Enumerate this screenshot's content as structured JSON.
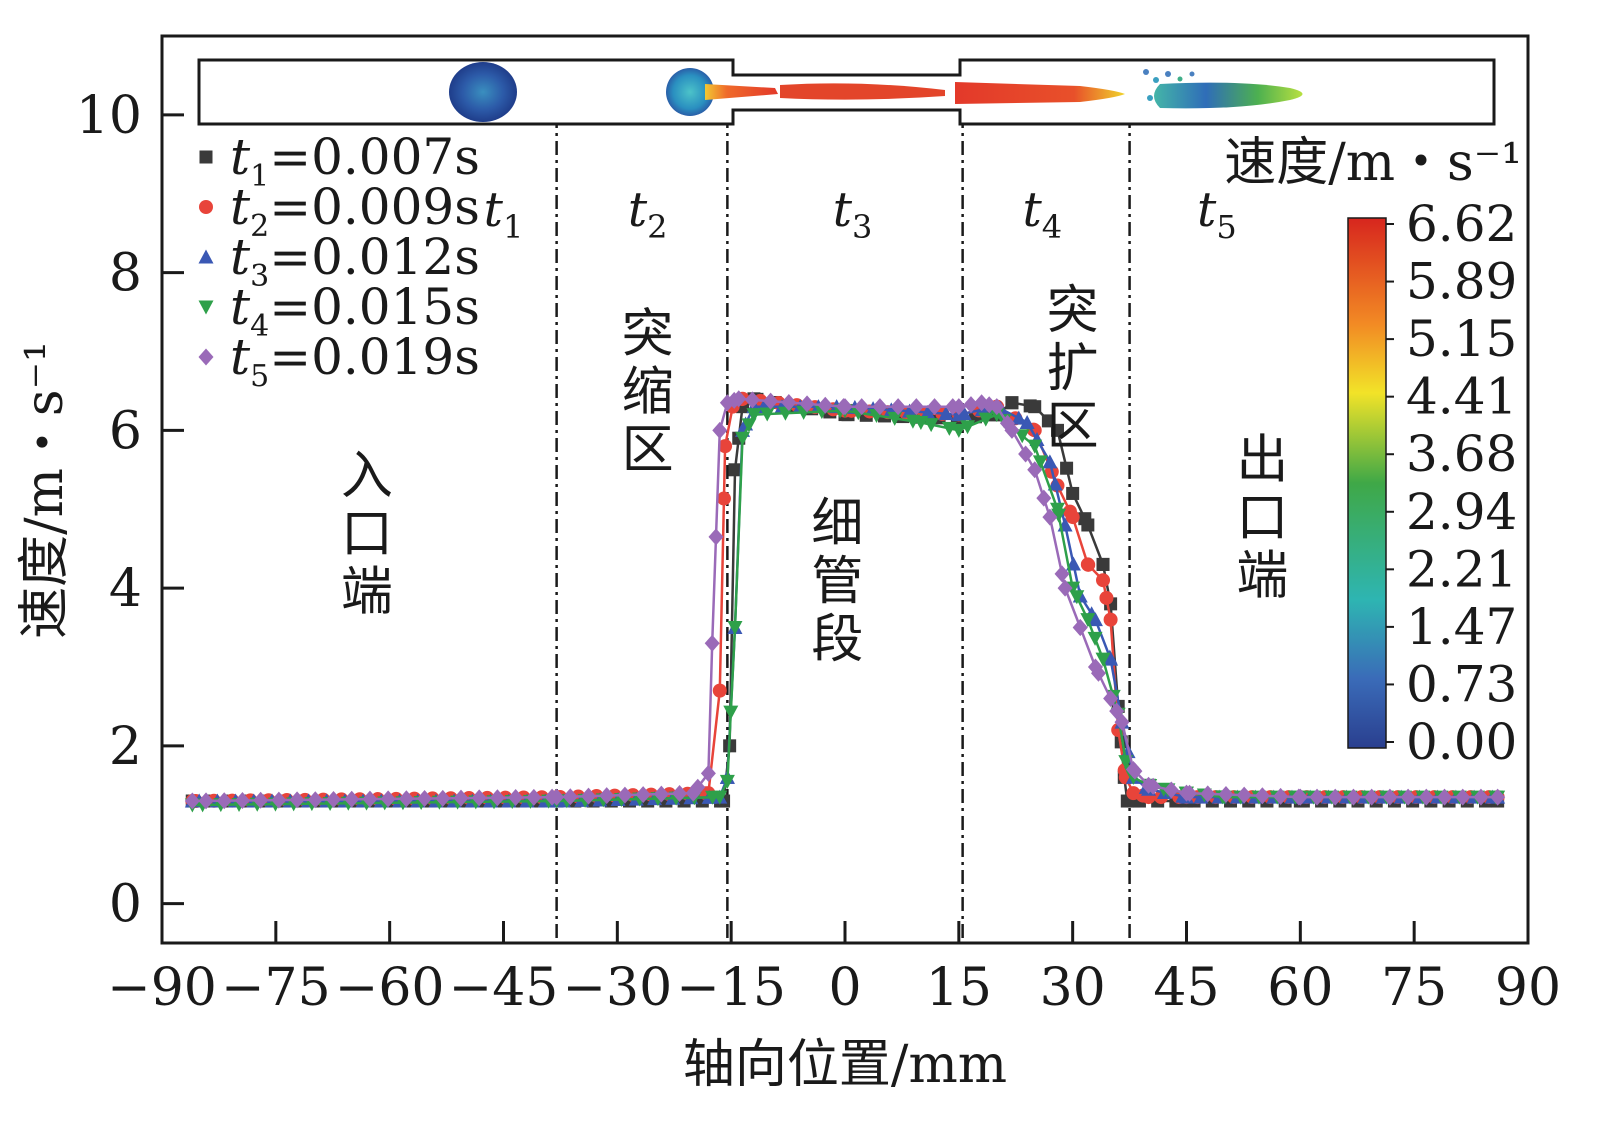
{
  "chart_data": {
    "type": "line",
    "xlabel": "轴向位置/mm",
    "ylabel": "速度/m・s⁻¹",
    "xlim": [
      -90,
      90
    ],
    "ylim": [
      -0.5,
      11
    ],
    "xticks": [
      -90,
      -75,
      -60,
      -45,
      -30,
      -15,
      0,
      15,
      30,
      45,
      60,
      75,
      90
    ],
    "xtick_labels": [
      "−90",
      "−75",
      "−60",
      "−45",
      "−30",
      "−15",
      "0",
      "15",
      "30",
      "45",
      "60",
      "75",
      "90"
    ],
    "yticks": [
      0,
      2,
      4,
      6,
      8,
      10
    ],
    "ytick_labels": [
      "0",
      "2",
      "4",
      "6",
      "8",
      "10"
    ],
    "boundaries_mm": [
      -38,
      -15.5,
      15.5,
      37.5
    ],
    "series": [
      {
        "name": "t1=0.007s",
        "t_sym": "t",
        "t_sub": "1",
        "t_val": "=0.007s",
        "marker": "square",
        "color": "#3a3a3a",
        "x": [
          -86,
          -38,
          -16,
          -15.2,
          -14.5,
          -13.5,
          -12,
          0,
          15,
          20,
          22,
          25,
          28,
          30,
          32,
          34,
          35,
          36,
          36.8,
          37.2,
          38,
          45,
          60,
          86
        ],
        "y": [
          1.3,
          1.3,
          1.3,
          2.0,
          5.5,
          6.3,
          6.4,
          6.2,
          6.15,
          6.2,
          6.35,
          6.3,
          6.0,
          5.2,
          4.8,
          4.3,
          3.8,
          2.5,
          1.6,
          1.3,
          1.3,
          1.3,
          1.3,
          1.3
        ]
      },
      {
        "name": "t2=0.009s",
        "t_sym": "t",
        "t_sub": "2",
        "t_val": "=0.009s",
        "marker": "circle",
        "color": "#e8443a",
        "x": [
          -86,
          -38,
          -18,
          -16.5,
          -15.8,
          -14.8,
          -13.5,
          0,
          15,
          20,
          25,
          28,
          30,
          32,
          34,
          35,
          36,
          37,
          38,
          40,
          45,
          60,
          86
        ],
        "y": [
          1.3,
          1.35,
          1.4,
          2.7,
          5.8,
          6.3,
          6.4,
          6.25,
          6.2,
          6.3,
          6.0,
          5.3,
          4.9,
          4.3,
          4.1,
          3.6,
          2.2,
          1.6,
          1.4,
          1.35,
          1.35,
          1.35,
          1.35
        ]
      },
      {
        "name": "t3=0.012s",
        "t_sym": "t",
        "t_sub": "3",
        "t_val": "=0.012s",
        "marker": "triangle-up",
        "color": "#3a58b4",
        "x": [
          -86,
          -38,
          -16.5,
          -15.5,
          -14.5,
          -13.5,
          -12,
          0,
          15,
          20,
          24,
          27,
          29,
          31,
          33,
          35,
          36.5,
          38,
          40,
          45,
          60,
          86
        ],
        "y": [
          1.3,
          1.3,
          1.35,
          1.6,
          3.5,
          6.0,
          6.3,
          6.3,
          6.2,
          6.3,
          6.1,
          5.6,
          4.8,
          3.9,
          3.6,
          3.1,
          2.3,
          1.6,
          1.45,
          1.35,
          1.35,
          1.35
        ]
      },
      {
        "name": "t4=0.015s",
        "t_sym": "t",
        "t_sub": "4",
        "t_val": "=0.015s",
        "marker": "triangle-down",
        "color": "#2ea04a",
        "x": [
          -86,
          -38,
          -16.5,
          -15.5,
          -14.5,
          -13.5,
          -12,
          0,
          10,
          15,
          20,
          25,
          28,
          30,
          32,
          34,
          36,
          37,
          38,
          40,
          42,
          45,
          50,
          60,
          86
        ],
        "y": [
          1.25,
          1.3,
          1.35,
          1.55,
          3.5,
          5.9,
          6.2,
          6.25,
          6.1,
          6.0,
          6.2,
          5.8,
          5.0,
          4.0,
          3.6,
          3.1,
          2.4,
          1.8,
          1.6,
          1.5,
          1.45,
          1.4,
          1.35,
          1.35,
          1.35
        ]
      },
      {
        "name": "t5=0.019s",
        "t_sym": "t",
        "t_sub": "5",
        "t_val": "=0.019s",
        "marker": "diamond",
        "color": "#9a6ab8",
        "x": [
          -86,
          -38,
          -20,
          -18,
          -17.5,
          -16.5,
          -15.5,
          -14,
          0,
          15,
          18,
          20,
          22,
          25,
          27,
          29,
          31,
          33,
          35,
          36.5,
          38,
          40,
          45,
          60,
          86
        ],
        "y": [
          1.3,
          1.35,
          1.4,
          1.65,
          3.3,
          6.0,
          6.35,
          6.4,
          6.3,
          6.3,
          6.35,
          6.3,
          6.0,
          5.5,
          4.9,
          4.0,
          3.5,
          3.0,
          2.6,
          2.3,
          1.7,
          1.5,
          1.4,
          1.35,
          1.35
        ]
      }
    ],
    "zone_labels": [
      {
        "text": "入口端",
        "x_mm": -63,
        "y_val": 5.2
      },
      {
        "text": "突缩区",
        "x_mm": -26,
        "y_val": 7.0
      },
      {
        "text": "细管段",
        "x_mm": -1,
        "y_val": 4.6
      },
      {
        "text": "突扩区",
        "x_mm": 30,
        "y_val": 7.3
      },
      {
        "text": "出口端",
        "x_mm": 55,
        "y_val": 5.4
      }
    ],
    "time_labels": [
      {
        "sym": "t",
        "sub": "1",
        "x_mm": -45
      },
      {
        "sym": "t",
        "sub": "2",
        "x_mm": -26
      },
      {
        "sym": "t",
        "sub": "3",
        "x_mm": 1
      },
      {
        "sym": "t",
        "sub": "4",
        "x_mm": 26
      },
      {
        "sym": "t",
        "sub": "5",
        "x_mm": 49
      }
    ],
    "colorbar": {
      "title": "速度/m・s⁻¹",
      "labels": [
        "6.62",
        "5.89",
        "5.15",
        "4.41",
        "3.68",
        "2.94",
        "2.21",
        "1.47",
        "0.73",
        "0.00"
      ],
      "stops": [
        "#d7261e",
        "#f28a24",
        "#f2e328",
        "#3fa847",
        "#2eb5b2",
        "#3a6bb8",
        "#2a3f8f"
      ]
    },
    "legend_position": "top-left"
  }
}
